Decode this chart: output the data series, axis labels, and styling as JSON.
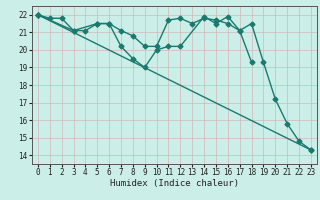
{
  "xlabel": "Humidex (Indice chaleur)",
  "background_color": "#cceee8",
  "grid_color": "#aad4cc",
  "line_color": "#1a7a6e",
  "xlim": [
    -0.5,
    23.5
  ],
  "ylim": [
    13.5,
    22.5
  ],
  "yticks": [
    14,
    15,
    16,
    17,
    18,
    19,
    20,
    21,
    22
  ],
  "xticks": [
    0,
    1,
    2,
    3,
    4,
    5,
    6,
    7,
    8,
    9,
    10,
    11,
    12,
    13,
    14,
    15,
    16,
    17,
    18,
    19,
    20,
    21,
    22,
    23
  ],
  "series": [
    {
      "x": [
        0,
        1,
        2,
        3,
        5,
        6,
        7,
        8,
        9,
        10,
        11,
        12,
        13,
        14,
        15,
        16,
        17,
        18
      ],
      "y": [
        22.0,
        21.8,
        21.8,
        21.1,
        21.5,
        21.5,
        21.1,
        20.8,
        20.2,
        20.2,
        21.7,
        21.8,
        21.5,
        21.8,
        21.7,
        21.5,
        21.1,
        19.3
      ],
      "marker": "D",
      "markersize": 2.5,
      "linewidth": 1.0
    },
    {
      "x": [
        0,
        3,
        4,
        5,
        6,
        7,
        8,
        9,
        10,
        11,
        12,
        14,
        15,
        16,
        17,
        18,
        19,
        20,
        21,
        22,
        23
      ],
      "y": [
        22.0,
        21.1,
        21.1,
        21.5,
        21.5,
        20.2,
        19.5,
        19.0,
        20.0,
        20.2,
        20.2,
        21.9,
        21.5,
        21.9,
        21.1,
        21.5,
        19.3,
        17.2,
        15.8,
        14.8,
        14.3
      ],
      "marker": "D",
      "markersize": 2.5,
      "linewidth": 1.0
    },
    {
      "x": [
        0,
        23
      ],
      "y": [
        22.0,
        14.3
      ],
      "marker": "D",
      "markersize": 2.5,
      "linewidth": 1.0
    }
  ]
}
